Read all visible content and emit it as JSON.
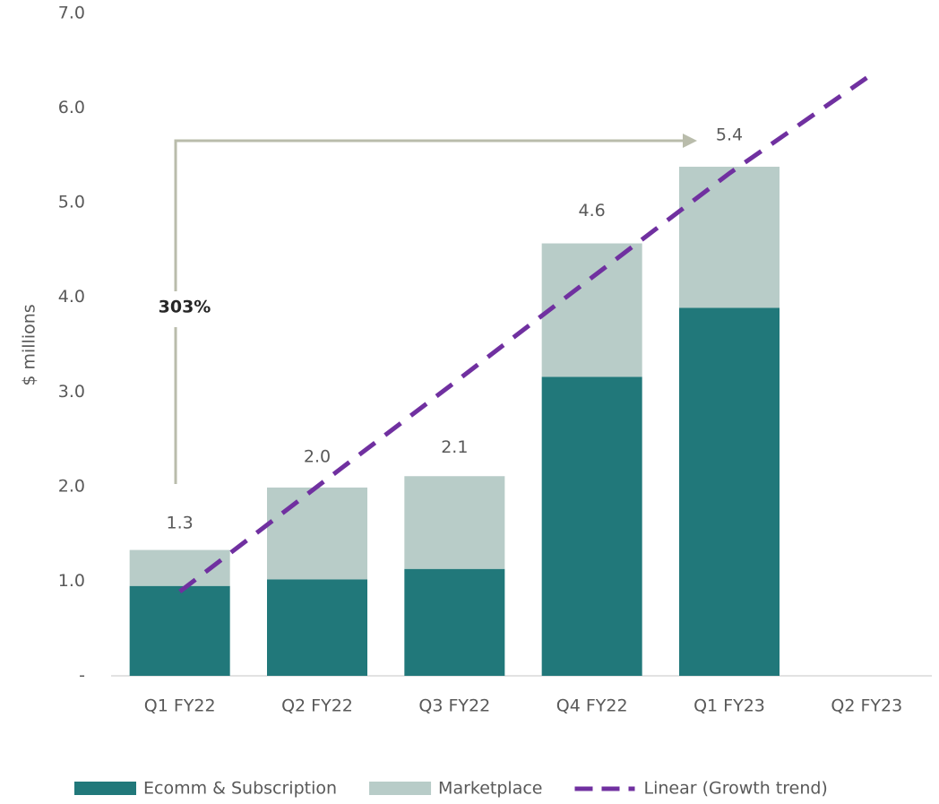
{
  "chart_data": {
    "type": "stacked_bar",
    "categories": [
      "Q1 FY22",
      "Q2 FY22",
      "Q3 FY22",
      "Q4 FY22",
      "Q1 FY23",
      "Q2 FY23"
    ],
    "series": [
      {
        "name": "Ecomm & Subscription",
        "color": "#21787a",
        "values": [
          0.95,
          1.02,
          1.13,
          3.16,
          3.89,
          null
        ]
      },
      {
        "name": "Marketplace",
        "color": "#b8ccc8",
        "values": [
          0.38,
          0.97,
          0.98,
          1.41,
          1.49,
          null
        ]
      }
    ],
    "totals": {
      "values": [
        1.3,
        2.0,
        2.1,
        4.6,
        5.4,
        null
      ],
      "value_labels": [
        "1.3",
        "2.0",
        "2.1",
        "4.6",
        "5.4",
        null
      ]
    },
    "trend": {
      "name": "Linear (Growth trend)",
      "color": "#7030a0",
      "values": [
        0.89,
        2.0,
        3.1,
        4.21,
        5.31,
        6.32
      ]
    },
    "ylabel": "$ millions",
    "ylim": [
      0,
      7
    ],
    "yticks": [
      {
        "value": 0,
        "label": "-"
      },
      {
        "value": 1,
        "label": "1.0"
      },
      {
        "value": 2,
        "label": "2.0"
      },
      {
        "value": 3,
        "label": "3.0"
      },
      {
        "value": 4,
        "label": "4.0"
      },
      {
        "value": 5,
        "label": "5.0"
      },
      {
        "value": 6,
        "label": "6.0"
      },
      {
        "value": 7,
        "label": "7.0"
      }
    ],
    "annotation": "303%"
  }
}
